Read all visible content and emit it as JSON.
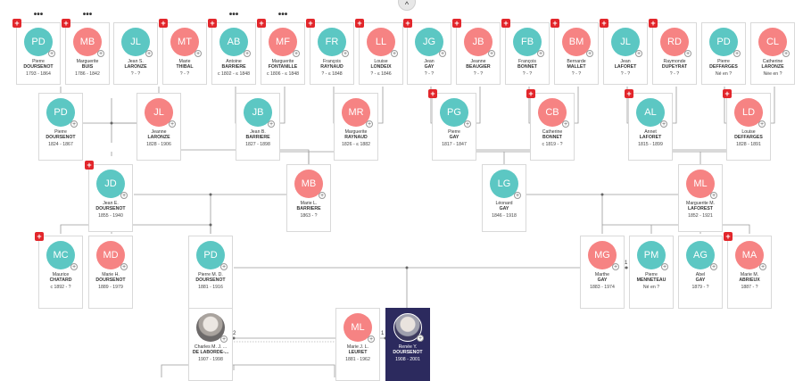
{
  "ui": {
    "collapse_icon": "chevron-up-icon",
    "colors": {
      "male": "#5cc7c3",
      "female": "#f68383",
      "selected": "#2c2a5e",
      "badge": "#e2262b"
    },
    "dots_label": "•••",
    "badge_label": "+",
    "plus_label": "+",
    "collapse_label": "^"
  },
  "people": [
    {
      "id": "p1",
      "initials": "PD",
      "sex": "m",
      "given": "Pierre",
      "surname": "DOURSENOT",
      "dates": "1793 - 1864",
      "badge": true,
      "dots": true
    },
    {
      "id": "p2",
      "initials": "MB",
      "sex": "f",
      "given": "Marguerite",
      "surname": "BUIS",
      "dates": "1786 - 1842",
      "badge": true,
      "dots": true
    },
    {
      "id": "p3",
      "initials": "JL",
      "sex": "m",
      "given": "Jean S.",
      "surname": "LARONZE",
      "dates": "? - ?",
      "badge": false
    },
    {
      "id": "p4",
      "initials": "MT",
      "sex": "f",
      "given": "Marie",
      "surname": "THIBAL",
      "dates": "? - ?",
      "badge": true
    },
    {
      "id": "p5",
      "initials": "AB",
      "sex": "m",
      "given": "Antoine",
      "surname": "BARRIERE",
      "dates": "c 1802 - ≤ 1848",
      "badge": true,
      "dots": true
    },
    {
      "id": "p6",
      "initials": "MF",
      "sex": "f",
      "given": "Marguerite",
      "surname": "FONTANILLE",
      "dates": "c 1806 - ≤ 1848",
      "badge": true,
      "dots": true
    },
    {
      "id": "p7",
      "initials": "FR",
      "sex": "m",
      "given": "François",
      "surname": "RAYNAUD",
      "dates": "? - ≤ 1848",
      "badge": true
    },
    {
      "id": "p8",
      "initials": "LL",
      "sex": "f",
      "given": "Louise",
      "surname": "LONDEIX",
      "dates": "? - ≤ 1846",
      "badge": true
    },
    {
      "id": "p9",
      "initials": "JG",
      "sex": "m",
      "given": "Jean",
      "surname": "GAY",
      "dates": "? - ?",
      "badge": true
    },
    {
      "id": "p10",
      "initials": "JB",
      "sex": "f",
      "given": "Jeanne",
      "surname": "BEAUGIER",
      "dates": "? - ?",
      "badge": true
    },
    {
      "id": "p11",
      "initials": "FB",
      "sex": "m",
      "given": "François",
      "surname": "BONNET",
      "dates": "? - ?",
      "badge": true
    },
    {
      "id": "p12",
      "initials": "BM",
      "sex": "f",
      "given": "Bernarde",
      "surname": "MALLET",
      "dates": "? - ?",
      "badge": true
    },
    {
      "id": "p13",
      "initials": "JL",
      "sex": "m",
      "given": "Jean",
      "surname": "LAFORET",
      "dates": "? - ?",
      "badge": true
    },
    {
      "id": "p14",
      "initials": "RD",
      "sex": "f",
      "given": "Raymonde",
      "surname": "DUPEYRAT",
      "dates": "? - ?",
      "badge": true
    },
    {
      "id": "p15",
      "initials": "PD",
      "sex": "m",
      "given": "Pierre",
      "surname": "DEFFARGES",
      "dates": "Né en ?",
      "badge": false
    },
    {
      "id": "p16",
      "initials": "CL",
      "sex": "f",
      "given": "Catherine",
      "surname": "LARONZE",
      "dates": "Née en ?",
      "badge": false
    },
    {
      "id": "p17",
      "initials": "PD",
      "sex": "m",
      "given": "Pierre",
      "surname": "DOURSENOT",
      "dates": "1824 - 1867",
      "badge": false
    },
    {
      "id": "p18",
      "initials": "JL",
      "sex": "f",
      "given": "Jeanne",
      "surname": "LARONZE",
      "dates": "1828 - 1906",
      "badge": false
    },
    {
      "id": "p19",
      "initials": "JB",
      "sex": "m",
      "given": "Jean B.",
      "surname": "BARRIERE",
      "dates": "1827 - 1898",
      "badge": false
    },
    {
      "id": "p20",
      "initials": "MR",
      "sex": "f",
      "given": "Marguerite",
      "surname": "RAYNAUD",
      "dates": "1826 - ≤ 1882",
      "badge": false
    },
    {
      "id": "p21",
      "initials": "PG",
      "sex": "m",
      "given": "Pierre",
      "surname": "GAY",
      "dates": "1817 - 1847",
      "badge": true
    },
    {
      "id": "p22",
      "initials": "CB",
      "sex": "f",
      "given": "Catherine",
      "surname": "BONNET",
      "dates": "c 1819 - ?",
      "badge": true
    },
    {
      "id": "p23",
      "initials": "AL",
      "sex": "m",
      "given": "Annet",
      "surname": "LAFORET",
      "dates": "1815 - 1899",
      "badge": true
    },
    {
      "id": "p24",
      "initials": "LD",
      "sex": "f",
      "given": "Louise",
      "surname": "DEFFARGES",
      "dates": "1828 - 1891",
      "badge": true
    },
    {
      "id": "p25",
      "initials": "JD",
      "sex": "m",
      "given": "Jean E.",
      "surname": "DOURSENOT",
      "dates": "1855 - 1940",
      "badge": true
    },
    {
      "id": "p26",
      "initials": "MB",
      "sex": "f",
      "given": "Marie L.",
      "surname": "BARRIERE",
      "dates": "1863 - ?",
      "badge": false
    },
    {
      "id": "p27",
      "initials": "LG",
      "sex": "m",
      "given": "Léonard",
      "surname": "GAY",
      "dates": "1846 - 1918",
      "badge": false
    },
    {
      "id": "p28",
      "initials": "ML",
      "sex": "f",
      "given": "Marguerite M.",
      "surname": "LAFOREST",
      "dates": "1852 - 1921",
      "badge": false
    },
    {
      "id": "p29",
      "initials": "MC",
      "sex": "m",
      "given": "Maurice",
      "surname": "CHATARD",
      "dates": "c 1892 - ?",
      "badge": true
    },
    {
      "id": "p30",
      "initials": "MD",
      "sex": "f",
      "given": "Marie H.",
      "surname": "DOURSENOT",
      "dates": "1889 - 1979",
      "badge": false
    },
    {
      "id": "p31",
      "initials": "PD",
      "sex": "m",
      "given": "Pierre M. D.",
      "surname": "DOURSENOT",
      "dates": "1881 - 1916",
      "badge": false
    },
    {
      "id": "p32",
      "initials": "MG",
      "sex": "f",
      "given": "Marthe",
      "surname": "GAY",
      "dates": "1883 - 1974",
      "badge": false
    },
    {
      "id": "p33",
      "initials": "PM",
      "sex": "m",
      "given": "Pierre",
      "surname": "MENNETEAU",
      "dates": "Né en ?",
      "badge": false
    },
    {
      "id": "p34",
      "initials": "AG",
      "sex": "m",
      "given": "Abel",
      "surname": "GAY",
      "dates": "1879 - ?",
      "badge": false
    },
    {
      "id": "p35",
      "initials": "MA",
      "sex": "f",
      "given": "Marie M.",
      "surname": "ABRIEUX",
      "dates": "1887 - ?",
      "badge": true
    },
    {
      "id": "p36",
      "initials": "",
      "sex": "photo",
      "given": "Charles M. J. ...",
      "surname": "DE LABORDE-...",
      "dates": "1907 - 1998",
      "badge": false
    },
    {
      "id": "p37",
      "initials": "ML",
      "sex": "f",
      "given": "Marie J. L.",
      "surname": "LEURET",
      "dates": "1881 - 1962",
      "badge": false
    },
    {
      "id": "p38",
      "initials": "",
      "sex": "photo",
      "given": "Renée Y.",
      "surname": "DOURSENOT",
      "dates": "1908 - 2001",
      "badge": false,
      "selected": true
    }
  ],
  "marriage_numbers": {
    "m1": "1",
    "m2": "2",
    "m3": "1"
  }
}
